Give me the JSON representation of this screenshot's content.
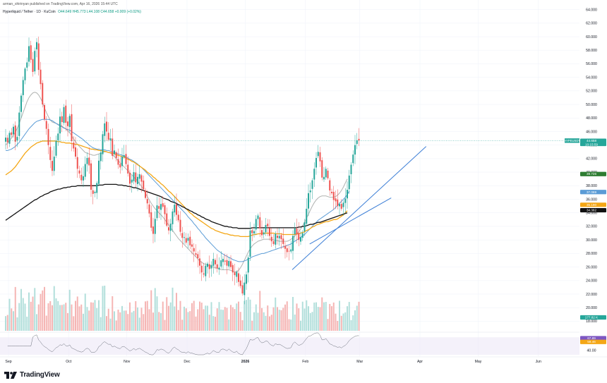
{
  "header": {
    "title": "arman_shirinyan published on TradingView.com, Apr 16, 2026 15:44 UTC",
    "symbol": "Hyperliquid / Tether · 1D · KuCoin",
    "ohlc": "O44.649 H45.773 L44.108 C44.658 +0.009 (+0.02%)"
  },
  "branding": {
    "logo_text": "TradingView",
    "logo_icon": "tradingview-logo-icon"
  },
  "colors": {
    "up": "#26a69a",
    "down": "#ef5350",
    "vol_up": "#b2dfdb",
    "vol_down": "#f5b5b4",
    "ma_gray": "#b0b3b1",
    "ma_blue": "#5b9cd6",
    "ma_orange": "#f4a716",
    "ma_black": "#111111",
    "trendline": "#3d7fd6",
    "rsi": "#6a6f7a",
    "rsi_band": "#ede7f6"
  },
  "chart_data": {
    "type": "candlestick",
    "title": "Hyperliquid / Tether · 1D · KuCoin",
    "x_axis": {
      "tick_labels": [
        "Sep",
        "Oct",
        "Nov",
        "Dec",
        "2026",
        "Feb",
        "Mar",
        "Apr",
        "May",
        "Jun"
      ]
    },
    "y_axis": {
      "position": "right",
      "range": [
        17.0,
        65.0
      ],
      "tick_labels": [
        "64.000",
        "62.000",
        "60.000",
        "58.000",
        "56.000",
        "54.000",
        "52.000",
        "50.000",
        "48.000",
        "46.000",
        "44.000",
        "42.000",
        "40.000",
        "38.000",
        "36.000",
        "34.000",
        "32.000",
        "30.000",
        "28.000",
        "26.000",
        "24.000",
        "22.000",
        "20.000",
        "18.000"
      ]
    },
    "price_series": {
      "name": "HYPEUSDT",
      "start_index": 0,
      "values": [
        45.1,
        44.4,
        45.8,
        45.5,
        46.7,
        44.5,
        45.2,
        48.8,
        51.3,
        53.6,
        55.3,
        56.2,
        58.6,
        56.6,
        54.8,
        57.9,
        59.2,
        55.1,
        53.0,
        50.0,
        47.8,
        46.4,
        44.0,
        41.8,
        40.2,
        42.3,
        44.6,
        45.7,
        48.2,
        47.4,
        49.6,
        47.3,
        46.8,
        48.3,
        44.6,
        43.5,
        42.3,
        40.5,
        39.8,
        38.8,
        39.4,
        41.2,
        42.1,
        41.0,
        37.4,
        36.8,
        37.1,
        38.4,
        41.7,
        42.9,
        45.6,
        47.2,
        46.0,
        44.8,
        45.0,
        42.4,
        43.2,
        42.1,
        41.1,
        40.7,
        42.3,
        42.5,
        41.2,
        39.8,
        38.3,
        38.9,
        40.0,
        38.5,
        39.3,
        39.7,
        38.6,
        37.5,
        36.2,
        35.4,
        33.9,
        31.8,
        30.9,
        33.1,
        35.1,
        34.6,
        35.3,
        34.9,
        33.8,
        32.1,
        31.4,
        32.4,
        34.2,
        35.2,
        33.7,
        32.9,
        31.2,
        30.3,
        30.4,
        29.6,
        30.3,
        29.2,
        29.0,
        28.3,
        27.8,
        27.3,
        26.2,
        25.2,
        24.9,
        26.2,
        26.5,
        25.7,
        26.3,
        27.2,
        26.4,
        25.8,
        25.9,
        27.0,
        27.2,
        26.8,
        26.2,
        26.9,
        26.0,
        25.2,
        24.8,
        25.3,
        23.8,
        23.2,
        22.1,
        23.7,
        24.9,
        27.4,
        31.4,
        31.0,
        31.3,
        33.1,
        33.6,
        31.7,
        30.7,
        31.1,
        32.2,
        32.0,
        30.6,
        29.8,
        29.4,
        30.9,
        30.3,
        30.6,
        30.1,
        29.4,
        28.7,
        28.2,
        28.3,
        28.6,
        30.6,
        31.7,
        30.8,
        30.0,
        30.4,
        31.0,
        32.6,
        34.6,
        36.9,
        37.3,
        38.8,
        40.5,
        42.1,
        43.0,
        41.6,
        39.2,
        39.3,
        40.5,
        39.1,
        37.3,
        36.9,
        35.9,
        35.7,
        35.0,
        35.3,
        34.6,
        35.5,
        36.1,
        37.4,
        39.5,
        41.1,
        42.6,
        44.0,
        44.7,
        44.7
      ]
    },
    "moving_averages": [
      {
        "color_key": "ma_gray",
        "values": [
          44.0,
          44.3,
          44.7,
          45.0,
          45.5,
          45.9,
          46.5,
          47.2,
          48.0,
          48.8,
          49.6,
          50.4,
          51.0,
          51.4,
          51.7,
          51.8,
          51.7,
          51.4,
          50.9,
          50.3,
          49.5,
          48.8,
          48.2,
          47.7,
          47.4,
          47.3,
          47.2,
          47.1,
          47.0,
          46.8,
          46.6,
          46.4,
          46.1,
          45.8,
          45.4,
          44.9,
          44.5,
          44.1,
          43.8,
          43.5,
          43.2,
          42.9,
          42.8,
          42.7,
          42.6,
          42.5,
          42.5,
          42.6,
          42.7,
          42.8,
          42.9,
          43.0,
          43.0,
          42.9,
          42.8,
          42.6,
          42.3,
          42.0,
          41.7,
          41.4,
          41.1,
          40.8,
          40.5,
          40.2,
          39.9,
          39.6,
          39.3,
          39.0,
          38.7,
          38.3,
          37.9,
          37.4,
          36.9,
          36.4,
          35.9,
          35.4,
          35.0,
          34.6,
          34.3,
          34.0,
          33.7,
          33.4,
          33.0,
          32.6,
          32.2,
          31.8,
          31.4,
          31.0,
          30.6,
          30.2,
          29.9,
          29.6,
          29.3,
          29.0,
          28.7,
          28.4,
          28.1,
          27.8,
          27.5,
          27.2,
          26.9,
          26.7,
          26.5,
          26.4,
          26.3,
          26.2,
          26.1,
          26.0,
          25.9,
          25.8,
          25.7,
          25.6,
          25.6,
          25.6,
          25.6,
          25.6,
          25.5,
          25.4,
          25.3,
          25.3,
          25.5,
          25.9,
          26.4,
          27.0,
          27.6,
          28.2,
          28.7,
          29.1,
          29.4,
          29.6,
          29.8,
          29.9,
          30.0,
          30.1,
          30.1,
          30.1,
          30.1,
          30.1,
          30.0,
          29.9,
          29.9,
          29.8,
          29.8,
          29.8,
          29.8,
          29.8,
          29.9,
          30.1,
          30.3,
          30.6,
          30.9,
          31.2,
          31.6,
          32.1,
          32.6,
          33.2,
          33.8,
          34.4,
          35.0,
          35.5,
          35.9,
          36.2,
          36.4,
          36.5,
          36.5,
          36.5,
          36.4,
          36.3,
          36.3,
          36.3,
          36.4,
          36.6,
          36.9,
          37.3,
          37.8,
          38.4,
          39.0
        ]
      },
      {
        "color_key": "ma_blue",
        "values": [
          43.2,
          43.2,
          43.3,
          43.4,
          43.6,
          43.8,
          44.1,
          44.4,
          44.8,
          45.2,
          45.6,
          46.0,
          46.4,
          46.7,
          47.0,
          47.3,
          47.5,
          47.6,
          47.7,
          47.8,
          47.8,
          47.8,
          47.8,
          47.7,
          47.6,
          47.4,
          47.2,
          47.0,
          46.8,
          46.7,
          46.5,
          46.4,
          46.3,
          46.2,
          46.0,
          45.8,
          45.6,
          45.4,
          45.2,
          45.0,
          44.8,
          44.5,
          44.3,
          44.0,
          43.8,
          43.6,
          43.5,
          43.4,
          43.4,
          43.3,
          43.3,
          43.3,
          43.2,
          43.2,
          43.1,
          43.0,
          42.9,
          42.8,
          42.7,
          42.6,
          42.5,
          42.4,
          42.2,
          42.1,
          41.9,
          41.8,
          41.6,
          41.4,
          41.2,
          40.9,
          40.7,
          40.4,
          40.1,
          39.8,
          39.5,
          39.2,
          38.9,
          38.6,
          38.3,
          38.0,
          37.7,
          37.4,
          37.1,
          36.8,
          36.5,
          36.2,
          35.9,
          35.6,
          35.3,
          35.0,
          34.7,
          34.4,
          34.1,
          33.8,
          33.4,
          33.1,
          32.8,
          32.4,
          32.1,
          31.7,
          31.4,
          31.0,
          30.7,
          30.3,
          30.0,
          29.7,
          29.4,
          29.1,
          28.8,
          28.5,
          28.3,
          28.1,
          27.9,
          27.7,
          27.6,
          27.4,
          27.3,
          27.1,
          27.0,
          26.9,
          26.8,
          26.8,
          26.8,
          26.9,
          27.0,
          27.2,
          27.3,
          27.5,
          27.6,
          27.7,
          27.8,
          27.9,
          28.0,
          28.0,
          28.1,
          28.2,
          28.3,
          28.4,
          28.5,
          28.6,
          28.7,
          28.8,
          28.9,
          29.0,
          29.1,
          29.2,
          29.3,
          29.4,
          29.6,
          29.8,
          30.0,
          30.2,
          30.4,
          30.6,
          30.8,
          31.1,
          31.4,
          31.7,
          32.0,
          32.3,
          32.6,
          32.9,
          33.1,
          33.3,
          33.5,
          33.7,
          33.9,
          34.1,
          34.3,
          34.5,
          34.8,
          35.1,
          35.4,
          35.7,
          36.0,
          36.3,
          36.7,
          37.2
        ]
      },
      {
        "color_key": "ma_orange",
        "values": [
          39.6,
          39.8,
          40.0,
          40.2,
          40.5,
          40.8,
          41.2,
          41.6,
          42.0,
          42.4,
          42.8,
          43.1,
          43.4,
          43.7,
          43.9,
          44.1,
          44.3,
          44.4,
          44.5,
          44.6,
          44.6,
          44.6,
          44.6,
          44.6,
          44.6,
          44.6,
          44.6,
          44.5,
          44.5,
          44.4,
          44.4,
          44.3,
          44.3,
          44.3,
          44.2,
          44.2,
          44.1,
          44.1,
          44.0,
          43.9,
          43.8,
          43.7,
          43.6,
          43.5,
          43.4,
          43.4,
          43.3,
          43.3,
          43.2,
          43.2,
          43.1,
          43.1,
          43.0,
          42.9,
          42.9,
          42.8,
          42.7,
          42.6,
          42.5,
          42.4,
          42.3,
          42.2,
          42.1,
          41.9,
          41.8,
          41.6,
          41.5,
          41.3,
          41.1,
          40.9,
          40.7,
          40.5,
          40.3,
          40.0,
          39.8,
          39.6,
          39.3,
          39.1,
          38.8,
          38.6,
          38.3,
          38.1,
          37.8,
          37.5,
          37.2,
          37.0,
          36.7,
          36.4,
          36.1,
          35.8,
          35.5,
          35.2,
          34.9,
          34.6,
          34.3,
          34.0,
          33.8,
          33.5,
          33.3,
          33.1,
          32.9,
          32.7,
          32.5,
          32.3,
          32.1,
          31.9,
          31.7,
          31.6,
          31.4,
          31.3,
          31.2,
          31.1,
          31.0,
          30.9,
          30.9,
          30.8,
          30.7,
          30.7,
          30.6,
          30.6,
          30.6,
          30.5,
          30.5,
          30.5,
          30.5,
          30.5,
          30.6,
          30.7,
          30.8,
          30.8,
          30.9,
          30.9,
          31.0,
          31.0,
          31.0,
          31.0,
          31.0,
          31.0,
          31.0,
          30.9,
          30.9,
          30.9,
          30.9,
          30.8,
          30.8,
          30.8,
          30.8,
          30.8,
          30.8,
          30.8,
          30.9,
          30.9,
          31.0,
          31.1,
          31.2,
          31.4,
          31.5,
          31.7,
          31.9,
          32.0,
          32.2,
          32.3,
          32.4,
          32.5,
          32.6,
          32.7,
          32.7,
          32.8,
          32.9,
          33.0,
          33.0,
          33.1,
          33.3,
          33.5,
          33.7,
          34.0,
          34.3
        ]
      },
      {
        "color_key": "ma_black",
        "values": [
          32.9,
          33.1,
          33.3,
          33.5,
          33.7,
          33.9,
          34.1,
          34.3,
          34.5,
          34.7,
          34.9,
          35.1,
          35.3,
          35.5,
          35.7,
          35.9,
          36.0,
          36.2,
          36.4,
          36.5,
          36.7,
          36.8,
          36.9,
          37.1,
          37.2,
          37.3,
          37.4,
          37.5,
          37.5,
          37.6,
          37.7,
          37.7,
          37.8,
          37.8,
          37.9,
          37.9,
          37.9,
          38.0,
          38.0,
          38.0,
          38.0,
          38.0,
          38.0,
          38.0,
          38.0,
          38.0,
          38.0,
          38.0,
          38.1,
          38.1,
          38.1,
          38.2,
          38.2,
          38.2,
          38.2,
          38.2,
          38.2,
          38.2,
          38.1,
          38.1,
          38.1,
          38.0,
          38.0,
          37.9,
          37.9,
          37.8,
          37.7,
          37.7,
          37.6,
          37.5,
          37.4,
          37.3,
          37.2,
          37.1,
          37.0,
          36.9,
          36.8,
          36.7,
          36.6,
          36.5,
          36.4,
          36.2,
          36.1,
          36.0,
          35.9,
          35.7,
          35.6,
          35.5,
          35.4,
          35.2,
          35.1,
          34.9,
          34.8,
          34.6,
          34.5,
          34.3,
          34.2,
          34.0,
          33.9,
          33.7,
          33.6,
          33.4,
          33.3,
          33.1,
          33.0,
          32.9,
          32.7,
          32.6,
          32.5,
          32.4,
          32.3,
          32.2,
          32.1,
          32.0,
          32.0,
          31.9,
          31.9,
          31.8,
          31.8,
          31.8,
          31.7,
          31.7,
          31.7,
          31.7,
          31.7,
          31.7,
          31.7,
          31.8,
          31.8,
          31.8,
          31.8,
          31.8,
          31.8,
          31.8,
          31.8,
          31.8,
          31.8,
          31.8,
          31.8,
          31.8,
          31.8,
          31.8,
          31.8,
          31.8,
          31.8,
          31.8,
          31.8,
          31.8,
          31.8,
          31.8,
          31.8,
          31.9,
          31.9,
          32.0,
          32.0,
          32.1,
          32.2,
          32.3,
          32.3,
          32.4,
          32.5,
          32.6,
          32.6,
          32.7,
          32.8,
          32.9,
          33.0,
          33.1,
          33.2,
          33.3,
          33.4,
          33.5,
          33.6,
          33.7,
          33.8,
          33.9,
          34.0
        ]
      }
    ],
    "trendlines": [
      {
        "from": {
          "index": 148,
          "price": 25.6
        },
        "to": {
          "index": 217,
          "price": 43.8
        }
      },
      {
        "from": {
          "index": 157,
          "price": 29.4
        },
        "to": {
          "index": 199,
          "price": 36.2
        }
      }
    ],
    "price_badges": [
      {
        "label": "HYPEUSDT",
        "value": "44.658",
        "sub": "10:15:59",
        "color": "#26a69a"
      },
      {
        "value": "39.726",
        "color": "#2e7d32"
      },
      {
        "value": "37.069",
        "color": "#5b9cd6"
      },
      {
        "value": "35.190",
        "color": "#f4a716"
      },
      {
        "value": "34.382",
        "color": "#111111"
      }
    ],
    "volume_badges": [
      {
        "value": "177.82 K",
        "color": "#26a69a"
      }
    ],
    "rsi": {
      "range": [
        30,
        80
      ],
      "band": [
        30,
        70
      ],
      "tick_labels": [
        "40.00"
      ],
      "badges": [
        {
          "value": "67.89",
          "color": "#7e57c2"
        },
        {
          "value": "59.46",
          "color": "#f4a716"
        }
      ]
    }
  }
}
